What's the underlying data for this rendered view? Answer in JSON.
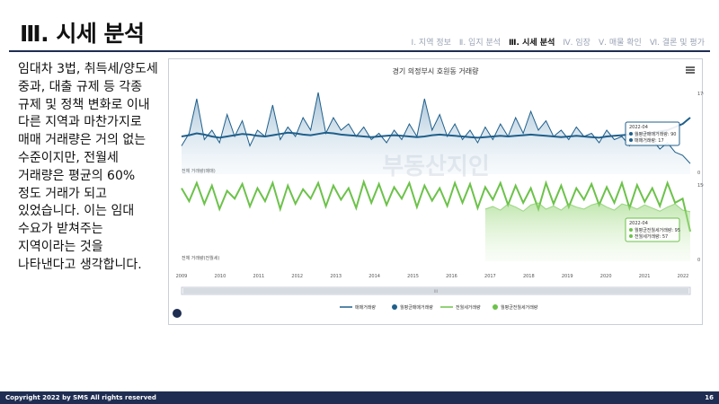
{
  "slide": {
    "title": "Ⅲ. 시세 분석",
    "nav": [
      {
        "label": "Ⅰ. 지역 정보",
        "active": false
      },
      {
        "label": "Ⅱ. 입지 분석",
        "active": false
      },
      {
        "label": "Ⅲ. 시세 분석",
        "active": true
      },
      {
        "label": "Ⅳ. 임장",
        "active": false
      },
      {
        "label": "Ⅴ. 매물 확인",
        "active": false
      },
      {
        "label": "Ⅵ. 결론 및 평가",
        "active": false
      }
    ],
    "body": "임대차 3법, 취득세/양도세 중과, 대출 규제 등 각종 규제 및 정책 변화로 이내 다른 지역과 마찬가지로 매매 거래량은 거의 없는 수준이지만, 전월세 거래량은 평균의 60% 정도 거래가 되고 있었습니다. 이는 임대 수요가 받쳐주는 지역이라는 것을 나타낸다고 생각합니다.",
    "footer": "Copyright 2022 by SMS All rights reserved",
    "page_number": "16"
  },
  "chart_data": {
    "type": "line",
    "title": "경기 의정부시 호원동 거래량",
    "watermark": "부동산지인",
    "x_ticks": [
      "2009",
      "2010",
      "2011",
      "2012",
      "2013",
      "2014",
      "2015",
      "2016",
      "2017",
      "2018",
      "2019",
      "2020",
      "2021",
      "2022"
    ],
    "panels": [
      {
        "label": "전체 거래량(매매)",
        "series": [
          {
            "name": "매매거래량",
            "color": "#1f5f8b",
            "type": "area-line",
            "values": [
              45,
              65,
              120,
              55,
              70,
              50,
              95,
              60,
              85,
              45,
              70,
              60,
              110,
              55,
              75,
              60,
              90,
              70,
              130,
              65,
              90,
              70,
              80,
              60,
              75,
              55,
              65,
              50,
              70,
              55,
              80,
              60,
              120,
              70,
              95,
              60,
              80,
              55,
              70,
              50,
              75,
              55,
              80,
              60,
              90,
              65,
              100,
              70,
              85,
              60,
              70,
              55,
              75,
              60,
              65,
              50,
              70,
              55,
              60,
              45,
              65,
              50,
              55,
              40,
              50,
              35,
              30,
              17
            ]
          },
          {
            "name": "월평균매매거래량",
            "color": "#1f5f8b",
            "type": "line",
            "values": [
              60,
              62,
              65,
              63,
              60,
              58,
              60,
              62,
              64,
              63,
              61,
              60,
              62,
              64,
              66,
              65,
              63,
              62,
              64,
              66,
              65,
              63,
              62,
              61,
              60,
              59,
              60,
              61,
              62,
              61,
              60,
              59,
              60,
              62,
              63,
              62,
              61,
              60,
              59,
              58,
              59,
              60,
              61,
              60,
              61,
              62,
              63,
              62,
              61,
              60,
              59,
              60,
              61,
              60,
              59,
              58,
              60,
              61,
              62,
              63,
              64,
              65,
              66,
              68,
              70,
              75,
              80,
              90
            ]
          }
        ],
        "tooltip": {
          "date": "2022-04",
          "items": [
            "월평균매매거래량: 90",
            "매매거래량: 17"
          ]
        },
        "axis_labels": [
          "170",
          "0"
        ]
      },
      {
        "label": "전체 거래량(전월세)",
        "series": [
          {
            "name": "전월세거래량",
            "color": "#6cc24a",
            "type": "line",
            "values": [
              140,
              115,
              150,
              110,
              145,
              100,
              135,
              120,
              148,
              105,
              140,
              115,
              150,
              100,
              145,
              110,
              138,
              120,
              150,
              105,
              145,
              118,
              140,
              102,
              152,
              112,
              148,
              108,
              142,
              120,
              150,
              104,
              145,
              116,
              140,
              106,
              150,
              112,
              148,
              102,
              142,
              118,
              150,
              108,
              145,
              112,
              140,
              100,
              150,
              110,
              145,
              104,
              140,
              118,
              148,
              108,
              142,
              112,
              150,
              102,
              146,
              114,
              140,
              106,
              150,
              112,
              120,
              57
            ]
          },
          {
            "name": "월평균전월세거래량",
            "color": "#6cc24a",
            "type": "area",
            "values": [
              null,
              null,
              null,
              null,
              null,
              null,
              null,
              null,
              null,
              null,
              null,
              null,
              null,
              null,
              null,
              null,
              null,
              null,
              null,
              null,
              null,
              null,
              null,
              null,
              null,
              null,
              null,
              null,
              null,
              null,
              null,
              null,
              null,
              null,
              null,
              null,
              null,
              null,
              null,
              null,
              100,
              105,
              98,
              110,
              104,
              96,
              108,
              112,
              100,
              106,
              98,
              110,
              104,
              100,
              108,
              112,
              104,
              98,
              110,
              106,
              100,
              108,
              102,
              96,
              104,
              110,
              98,
              95
            ]
          }
        ],
        "tooltip": {
          "date": "2022-04",
          "items": [
            "월평균전월세거래량: 95",
            "전월세거래량: 57"
          ]
        },
        "axis_labels": [
          "150",
          "0"
        ]
      }
    ],
    "legend": [
      {
        "name": "매매거래량",
        "color": "#1f5f8b",
        "kind": "line"
      },
      {
        "name": "월평균매매거래량",
        "color": "#1f5f8b",
        "kind": "dot"
      },
      {
        "name": "전월세거래량",
        "color": "#6cc24a",
        "kind": "line"
      },
      {
        "name": "월평균전월세거래량",
        "color": "#6cc24a",
        "kind": "dot"
      }
    ],
    "scrollbar_label": "III"
  }
}
